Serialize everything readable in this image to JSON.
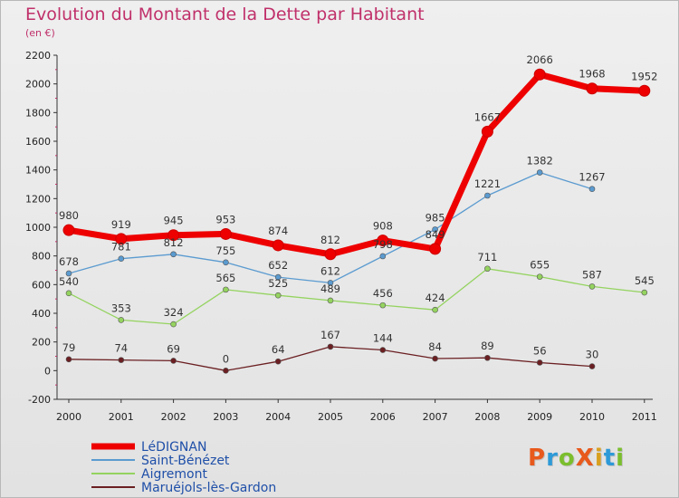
{
  "title": "Evolution du Montant de la Dette par Habitant",
  "subtitle": "(en €)",
  "logo": {
    "text": "ProXiti",
    "colors": [
      "#e8591c",
      "#2e9ad8",
      "#7bbe2e",
      "#e8591c",
      "#d8a020",
      "#2e9ad8",
      "#7bbe2e"
    ]
  },
  "chart_data": {
    "type": "line",
    "title": "Evolution du Montant de la Dette par Habitant",
    "subtitle": "(en €)",
    "xlabel": "",
    "ylabel": "",
    "categories": [
      "2000",
      "2001",
      "2002",
      "2003",
      "2004",
      "2005",
      "2006",
      "2007",
      "2008",
      "2009",
      "2010",
      "2011"
    ],
    "ylim": [
      -200,
      2200
    ],
    "yticks": [
      -200,
      0,
      200,
      400,
      600,
      800,
      1000,
      1200,
      1400,
      1600,
      1800,
      2000,
      2200
    ],
    "grid": false,
    "legend": "bottom-left",
    "series": [
      {
        "name": "LéDIGNAN",
        "color": "#ee0000",
        "values": [
          980,
          919,
          945,
          953,
          874,
          812,
          908,
          849,
          1667,
          2066,
          1968,
          1952
        ],
        "labels": [
          "980",
          "919",
          "945",
          "953",
          "874",
          "812",
          "908",
          "849",
          "1667",
          "2066",
          "1968",
          "1952"
        ]
      },
      {
        "name": "Saint-Bénézet",
        "color": "#5b9bd0",
        "values": [
          678,
          781,
          812,
          755,
          652,
          612,
          798,
          985,
          1221,
          1382,
          1267,
          null
        ],
        "labels": [
          "678",
          "781",
          "812",
          "755",
          "652",
          "612",
          "798",
          "985",
          "1221",
          "1382",
          "1267",
          ""
        ]
      },
      {
        "name": "Aigremont",
        "color": "#94d35f",
        "values": [
          540,
          353,
          324,
          565,
          525,
          489,
          456,
          424,
          711,
          655,
          587,
          545
        ],
        "labels": [
          "540",
          "353",
          "324",
          "565",
          "525",
          "489",
          "456",
          "424",
          "711",
          "655",
          "587",
          "545"
        ]
      },
      {
        "name": "Maruéjols-lès-Gardon",
        "color": "#6b1f22",
        "values": [
          79,
          74,
          69,
          0,
          64,
          167,
          144,
          84,
          89,
          56,
          30,
          null
        ],
        "labels": [
          "79",
          "74",
          "69",
          "0",
          "64",
          "167",
          "144",
          "84",
          "89",
          "56",
          "30",
          ""
        ]
      }
    ]
  }
}
